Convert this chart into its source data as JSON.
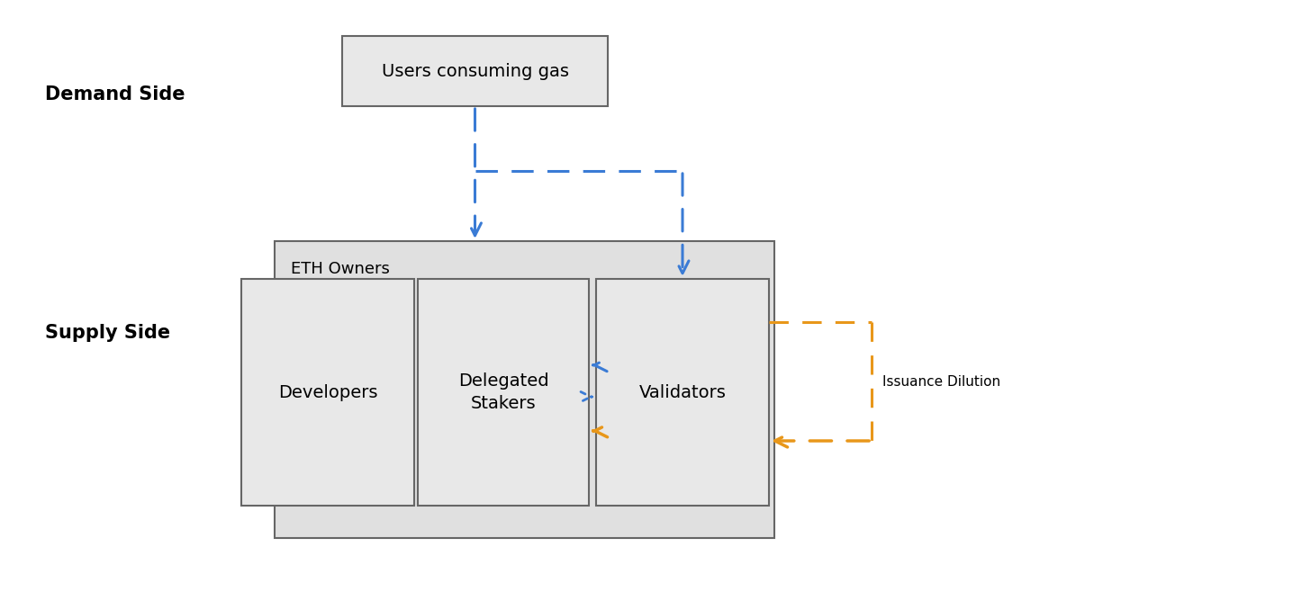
{
  "bg_color": "#ffffff",
  "box_fill_light": "#e8e8e8",
  "box_fill_outer": "#e0e0e0",
  "box_edge": "#666666",
  "blue_color": "#3a7bd5",
  "orange_color": "#e8971a",
  "demand_label": "Demand Side",
  "supply_label": "Supply Side",
  "users_box_text": "Users consuming gas",
  "eth_owners_text": "ETH Owners",
  "developers_text": "Developers",
  "delegated_stakers_text": "Delegated\nStakers",
  "validators_text": "Validators",
  "issuance_text": "Issuance Dilution",
  "figsize": [
    14.56,
    6.68
  ],
  "dpi": 100
}
